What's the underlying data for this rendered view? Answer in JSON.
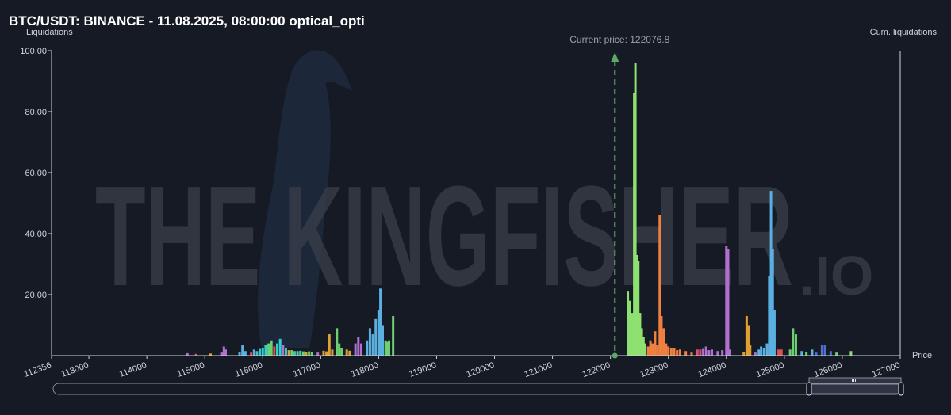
{
  "header": {
    "title": "BTC/USDT: BINANCE - 11.08.2025, 08:00:00 optical_opti",
    "left_axis_label": "Liquidations",
    "right_axis_label": "Cum. liquidations",
    "watermark_text": "THE KINGFISHER",
    "watermark_suffix": ".IO",
    "current_price_label": "Current price: 122076.8"
  },
  "colors": {
    "background": "#161a25",
    "axis": "#d0d4dc",
    "current_price_line": "#5fa86a",
    "watermark": "#3a3e4a"
  },
  "chart_data": {
    "type": "bar",
    "title": "BTC/USDT: BINANCE - 11.08.2025, 08:00:00 optical_opti",
    "ylabel": "Liquidations",
    "y2label": "Cum. liquidations",
    "xlabel": "Price",
    "xlim": [
      112356,
      127000
    ],
    "ylim": [
      0,
      100
    ],
    "yticks": [
      "20.00",
      "40.00",
      "60.00",
      "80.00",
      "100.00"
    ],
    "yticks_values": [
      20,
      40,
      60,
      80,
      100
    ],
    "xticks": [
      "112356",
      "113000",
      "114000",
      "115000",
      "116000",
      "117000",
      "118000",
      "119000",
      "120000",
      "121000",
      "122000",
      "123000",
      "124000",
      "125000",
      "126000",
      "127000"
    ],
    "xticks_values": [
      112356,
      113000,
      114000,
      115000,
      116000,
      117000,
      118000,
      119000,
      120000,
      121000,
      122000,
      123000,
      124000,
      125000,
      126000,
      127000
    ],
    "current_price": 122076.8,
    "bars": [
      {
        "x": 114700,
        "y": 0.8,
        "c": "#b070d0"
      },
      {
        "x": 114850,
        "y": 0.6,
        "c": "#e05050"
      },
      {
        "x": 115100,
        "y": 0.7,
        "c": "#e0a030"
      },
      {
        "x": 115300,
        "y": 1.0,
        "c": "#b070d0"
      },
      {
        "x": 115330,
        "y": 3.0,
        "c": "#b070d0"
      },
      {
        "x": 115360,
        "y": 2.0,
        "c": "#b070d0"
      },
      {
        "x": 115600,
        "y": 1.2,
        "c": "#5ab0e0"
      },
      {
        "x": 115650,
        "y": 3.5,
        "c": "#5ab0e0"
      },
      {
        "x": 115700,
        "y": 1.5,
        "c": "#5ab0e0"
      },
      {
        "x": 115800,
        "y": 1.0,
        "c": "#e05050"
      },
      {
        "x": 115850,
        "y": 2.0,
        "c": "#5ab0e0"
      },
      {
        "x": 115900,
        "y": 1.5,
        "c": "#40c0c0"
      },
      {
        "x": 115950,
        "y": 2.2,
        "c": "#40c0c0"
      },
      {
        "x": 116000,
        "y": 2.5,
        "c": "#30d0d0"
      },
      {
        "x": 116050,
        "y": 3.5,
        "c": "#30d0d0"
      },
      {
        "x": 116100,
        "y": 4.0,
        "c": "#6ad070"
      },
      {
        "x": 116150,
        "y": 5.0,
        "c": "#6ad070"
      },
      {
        "x": 116200,
        "y": 3.0,
        "c": "#e05050"
      },
      {
        "x": 116250,
        "y": 4.0,
        "c": "#30d0d0"
      },
      {
        "x": 116300,
        "y": 5.5,
        "c": "#30d0d0"
      },
      {
        "x": 116350,
        "y": 3.5,
        "c": "#b070d0"
      },
      {
        "x": 116400,
        "y": 2.5,
        "c": "#40c0c0"
      },
      {
        "x": 116450,
        "y": 1.8,
        "c": "#e0a030"
      },
      {
        "x": 116500,
        "y": 1.8,
        "c": "#6ad070"
      },
      {
        "x": 116550,
        "y": 1.5,
        "c": "#40c0c0"
      },
      {
        "x": 116600,
        "y": 1.5,
        "c": "#6ad070"
      },
      {
        "x": 116650,
        "y": 1.6,
        "c": "#30d0d0"
      },
      {
        "x": 116700,
        "y": 1.4,
        "c": "#6ad070"
      },
      {
        "x": 116750,
        "y": 1.3,
        "c": "#e0a030"
      },
      {
        "x": 116800,
        "y": 1.4,
        "c": "#6ad070"
      },
      {
        "x": 116850,
        "y": 1.2,
        "c": "#6ad070"
      },
      {
        "x": 116950,
        "y": 1.0,
        "c": "#b070d0"
      },
      {
        "x": 117050,
        "y": 1.6,
        "c": "#e0a030"
      },
      {
        "x": 117100,
        "y": 1.4,
        "c": "#e0a030"
      },
      {
        "x": 117150,
        "y": 7.0,
        "c": "#e0a030"
      },
      {
        "x": 117200,
        "y": 2.0,
        "c": "#e0a030"
      },
      {
        "x": 117280,
        "y": 9.0,
        "c": "#6ad070"
      },
      {
        "x": 117320,
        "y": 4.0,
        "c": "#6ad070"
      },
      {
        "x": 117360,
        "y": 2.5,
        "c": "#6ad070"
      },
      {
        "x": 117450,
        "y": 2.0,
        "c": "#e0a030"
      },
      {
        "x": 117500,
        "y": 1.6,
        "c": "#e0a030"
      },
      {
        "x": 117600,
        "y": 4.0,
        "c": "#b070d0"
      },
      {
        "x": 117650,
        "y": 6.0,
        "c": "#b070d0"
      },
      {
        "x": 117700,
        "y": 4.0,
        "c": "#b070d0"
      },
      {
        "x": 117800,
        "y": 5.0,
        "c": "#5ab0e0"
      },
      {
        "x": 117850,
        "y": 9.0,
        "c": "#5ab0e0"
      },
      {
        "x": 117900,
        "y": 7.0,
        "c": "#5ab0e0"
      },
      {
        "x": 117950,
        "y": 12.0,
        "c": "#5ab0e0"
      },
      {
        "x": 118000,
        "y": 15.0,
        "c": "#5ab0e0"
      },
      {
        "x": 118030,
        "y": 22.0,
        "c": "#5ab0e0"
      },
      {
        "x": 118070,
        "y": 10.0,
        "c": "#5ab0e0"
      },
      {
        "x": 118120,
        "y": 5.0,
        "c": "#6ad070"
      },
      {
        "x": 118150,
        "y": 4.5,
        "c": "#6ad070"
      },
      {
        "x": 118180,
        "y": 5.0,
        "c": "#6ad070"
      },
      {
        "x": 118250,
        "y": 13.0,
        "c": "#6ad070"
      },
      {
        "x": 122300,
        "y": 21.0,
        "c": "#8ee070"
      },
      {
        "x": 122340,
        "y": 18.0,
        "c": "#8ee070"
      },
      {
        "x": 122380,
        "y": 14.0,
        "c": "#8ee070"
      },
      {
        "x": 122410,
        "y": 86.0,
        "c": "#8ee070"
      },
      {
        "x": 122430,
        "y": 96.0,
        "c": "#8ee070"
      },
      {
        "x": 122450,
        "y": 33.0,
        "c": "#8ee070"
      },
      {
        "x": 122480,
        "y": 31.0,
        "c": "#8ee070"
      },
      {
        "x": 122510,
        "y": 14.0,
        "c": "#8ee070"
      },
      {
        "x": 122540,
        "y": 9.0,
        "c": "#8ee070"
      },
      {
        "x": 122570,
        "y": 6.0,
        "c": "#8ee070"
      },
      {
        "x": 122600,
        "y": 4.0,
        "c": "#8ee070"
      },
      {
        "x": 122650,
        "y": 3.0,
        "c": "#f08040"
      },
      {
        "x": 122690,
        "y": 5.0,
        "c": "#f08040"
      },
      {
        "x": 122730,
        "y": 4.0,
        "c": "#f08040"
      },
      {
        "x": 122770,
        "y": 8.0,
        "c": "#f08040"
      },
      {
        "x": 122810,
        "y": 3.5,
        "c": "#f08040"
      },
      {
        "x": 122850,
        "y": 46.0,
        "c": "#f08040"
      },
      {
        "x": 122880,
        "y": 13.0,
        "c": "#f08040"
      },
      {
        "x": 122920,
        "y": 9.0,
        "c": "#f08040"
      },
      {
        "x": 122960,
        "y": 4.0,
        "c": "#f08040"
      },
      {
        "x": 123000,
        "y": 3.0,
        "c": "#f08040"
      },
      {
        "x": 123050,
        "y": 2.5,
        "c": "#f08040"
      },
      {
        "x": 123100,
        "y": 2.5,
        "c": "#f08040"
      },
      {
        "x": 123150,
        "y": 1.8,
        "c": "#f08040"
      },
      {
        "x": 123200,
        "y": 2.0,
        "c": "#f08040"
      },
      {
        "x": 123300,
        "y": 1.5,
        "c": "#f08040"
      },
      {
        "x": 123400,
        "y": 1.0,
        "c": "#f08040"
      },
      {
        "x": 123500,
        "y": 2.0,
        "c": "#e05070"
      },
      {
        "x": 123550,
        "y": 2.0,
        "c": "#e05070"
      },
      {
        "x": 123600,
        "y": 2.2,
        "c": "#b070d0"
      },
      {
        "x": 123650,
        "y": 3.0,
        "c": "#b070d0"
      },
      {
        "x": 123700,
        "y": 1.8,
        "c": "#b070d0"
      },
      {
        "x": 123750,
        "y": 2.0,
        "c": "#b070d0"
      },
      {
        "x": 123850,
        "y": 1.5,
        "c": "#b070d0"
      },
      {
        "x": 123930,
        "y": 1.8,
        "c": "#b070d0"
      },
      {
        "x": 124000,
        "y": 36.0,
        "c": "#b070d0"
      },
      {
        "x": 124030,
        "y": 35.0,
        "c": "#b070d0"
      },
      {
        "x": 124060,
        "y": 2.0,
        "c": "#b070d0"
      },
      {
        "x": 124300,
        "y": 1.2,
        "c": "#e0a030"
      },
      {
        "x": 124350,
        "y": 13.0,
        "c": "#e0a030"
      },
      {
        "x": 124380,
        "y": 10.0,
        "c": "#e0a030"
      },
      {
        "x": 124410,
        "y": 3.5,
        "c": "#e0a030"
      },
      {
        "x": 124500,
        "y": 1.0,
        "c": "#b070d0"
      },
      {
        "x": 124560,
        "y": 2.0,
        "c": "#5ab0e0"
      },
      {
        "x": 124600,
        "y": 3.0,
        "c": "#5ab0e0"
      },
      {
        "x": 124650,
        "y": 2.5,
        "c": "#5ab0e0"
      },
      {
        "x": 124700,
        "y": 4.0,
        "c": "#5ab0e0"
      },
      {
        "x": 124740,
        "y": 26.0,
        "c": "#5ab0e0"
      },
      {
        "x": 124770,
        "y": 54.0,
        "c": "#5ab0e0"
      },
      {
        "x": 124800,
        "y": 35.0,
        "c": "#5ab0e0"
      },
      {
        "x": 124830,
        "y": 15.0,
        "c": "#5ab0e0"
      },
      {
        "x": 124900,
        "y": 2.0,
        "c": "#e05050"
      },
      {
        "x": 124950,
        "y": 2.0,
        "c": "#e05050"
      },
      {
        "x": 125100,
        "y": 2.0,
        "c": "#6ad070"
      },
      {
        "x": 125150,
        "y": 9.0,
        "c": "#6ad070"
      },
      {
        "x": 125200,
        "y": 7.0,
        "c": "#6ad070"
      },
      {
        "x": 125300,
        "y": 1.5,
        "c": "#5ab0e0"
      },
      {
        "x": 125380,
        "y": 1.2,
        "c": "#6ad070"
      },
      {
        "x": 125480,
        "y": 2.0,
        "c": "#5ab0e0"
      },
      {
        "x": 125550,
        "y": 1.0,
        "c": "#5070d0"
      },
      {
        "x": 125650,
        "y": 3.5,
        "c": "#5070d0"
      },
      {
        "x": 125700,
        "y": 3.5,
        "c": "#5070d0"
      },
      {
        "x": 125800,
        "y": 1.5,
        "c": "#5070d0"
      },
      {
        "x": 125900,
        "y": 1.0,
        "c": "#6ad070"
      },
      {
        "x": 126150,
        "y": 1.5,
        "c": "#8ee070"
      }
    ]
  }
}
